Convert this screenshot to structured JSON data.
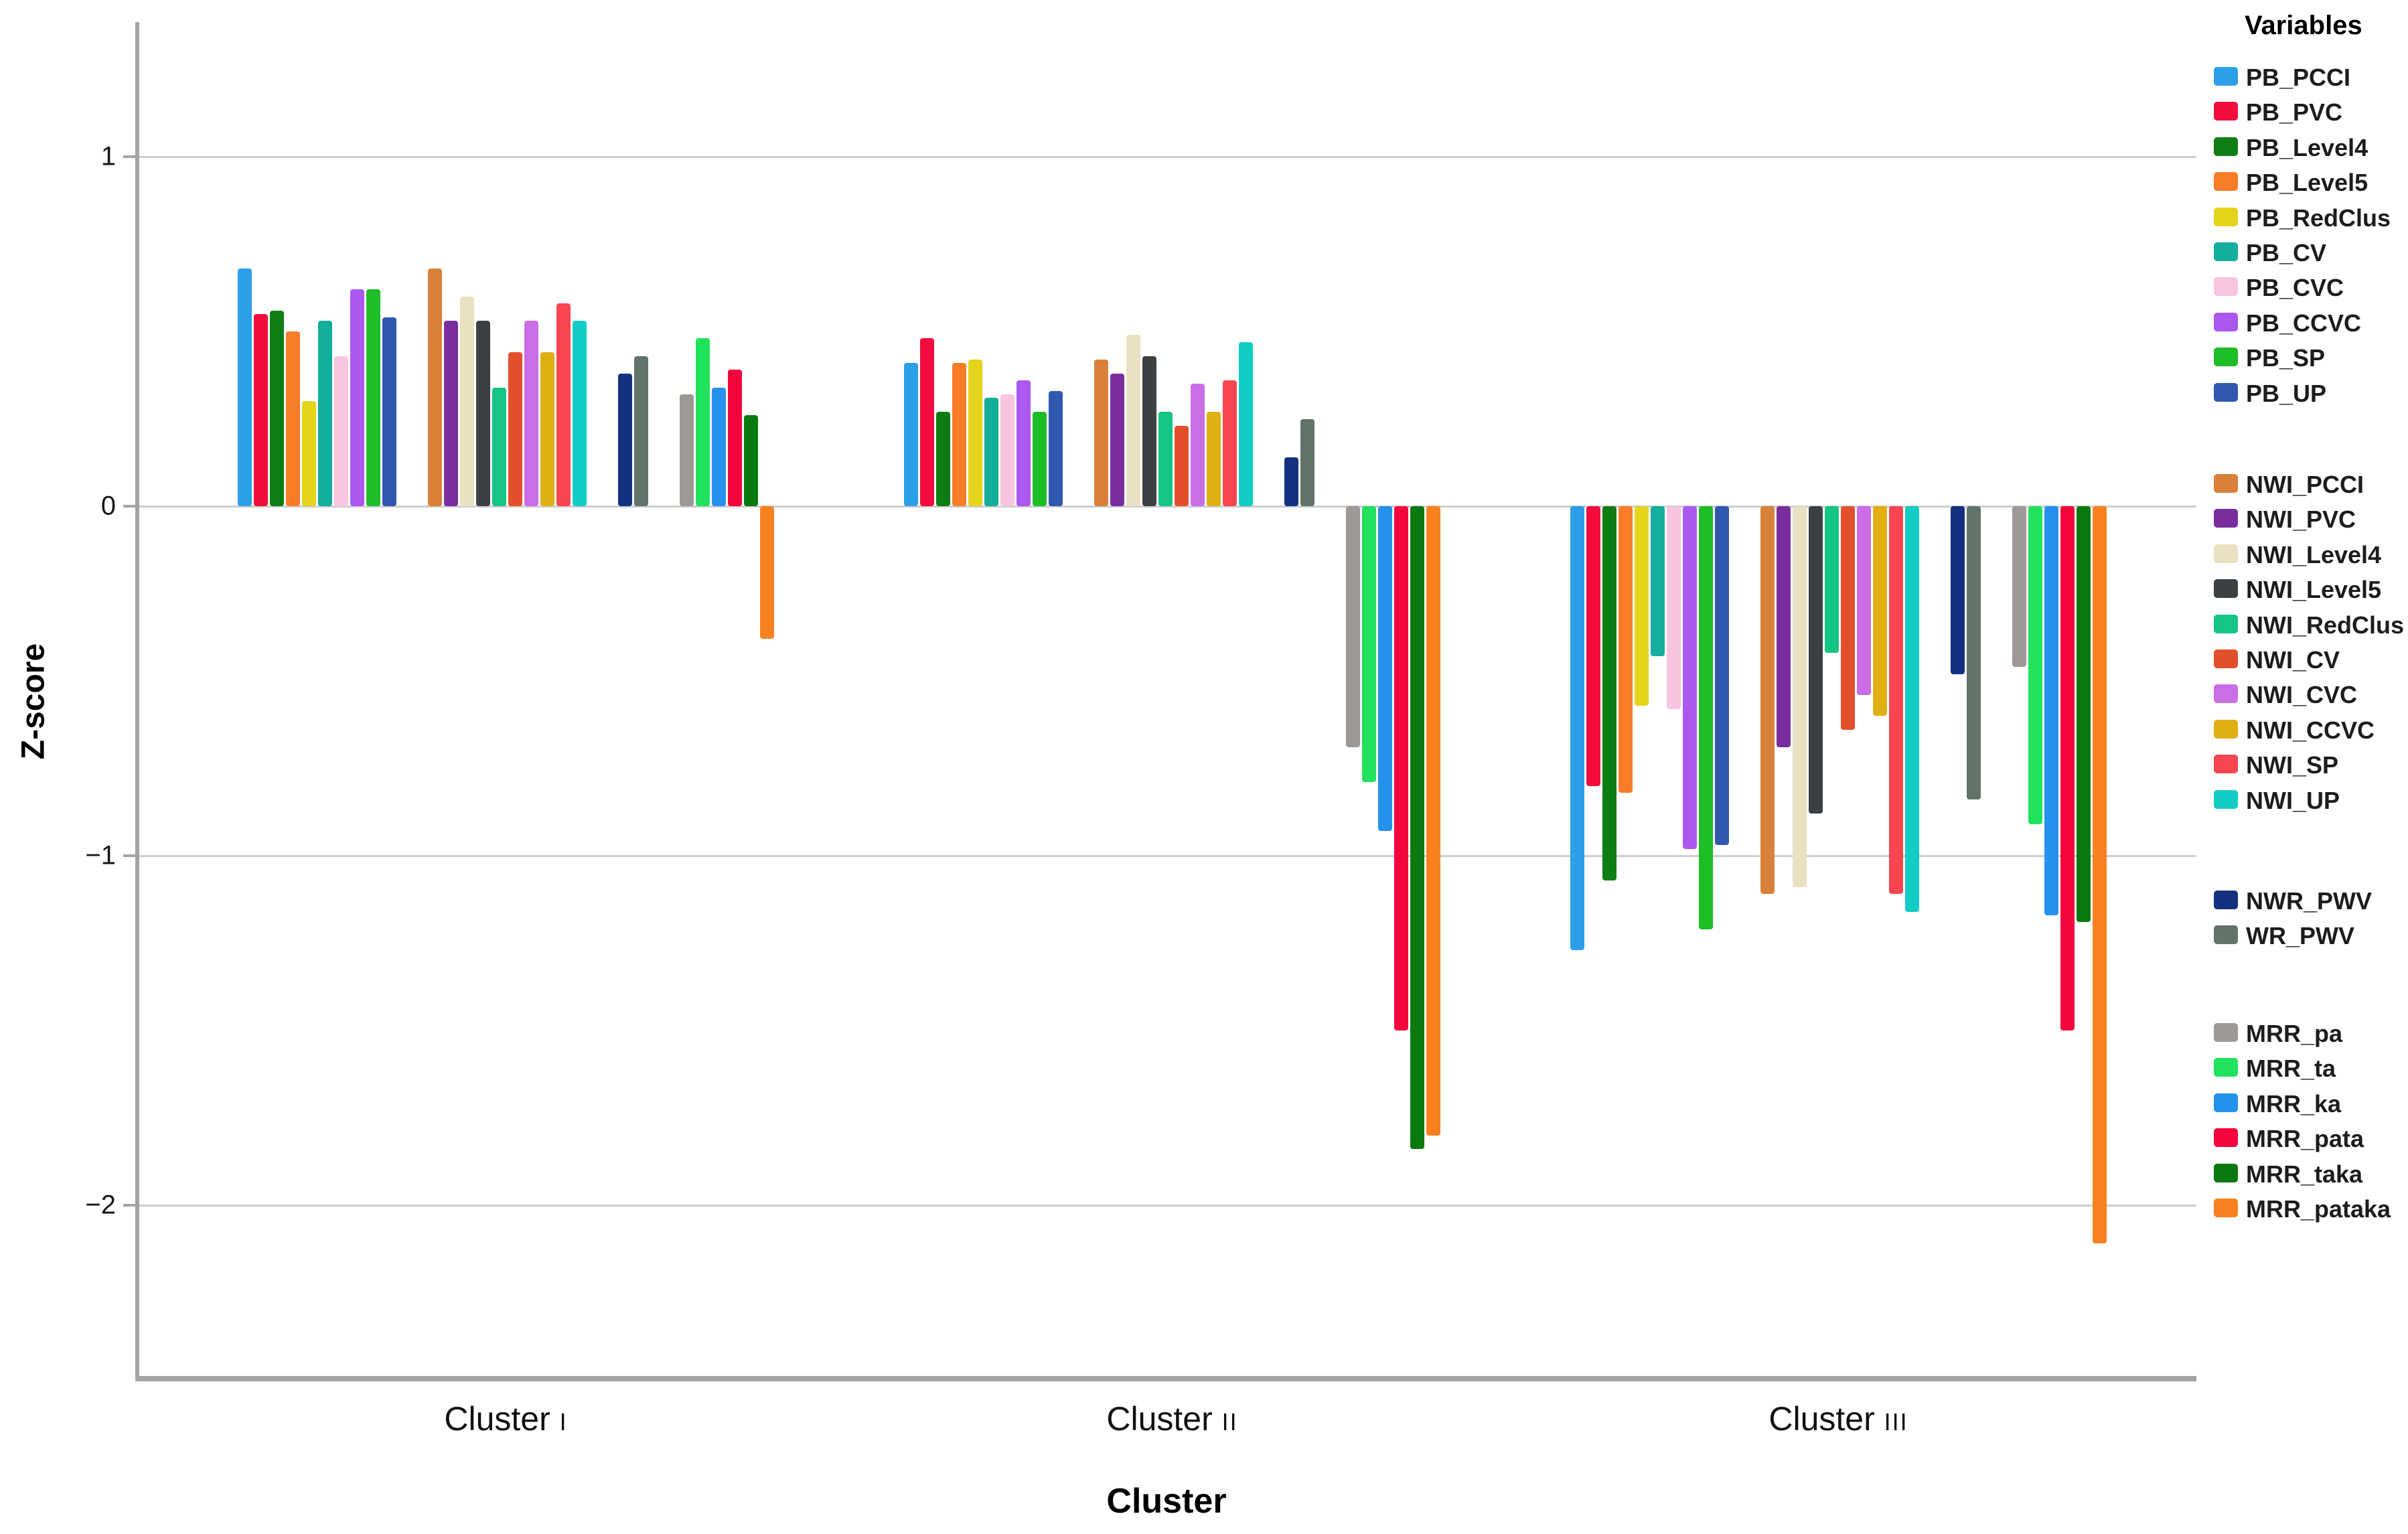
{
  "chart_data": {
    "type": "bar",
    "title": "",
    "xlabel": "Cluster",
    "ylabel": "Z-score",
    "legend_title": "Variables",
    "legend_position": "right",
    "grid": true,
    "ylim": [
      -2.5,
      1.35
    ],
    "ytick_values": [
      1,
      0,
      -1,
      -2
    ],
    "ytick_labels": [
      "1",
      "0",
      "−1",
      "−2"
    ],
    "categories": [
      "Cluster I",
      "Cluster II",
      "Cluster III"
    ],
    "category_labels": [
      {
        "text": "Cluster",
        "numeral": "I"
      },
      {
        "text": "Cluster",
        "numeral": "II"
      },
      {
        "text": "Cluster",
        "numeral": "III"
      }
    ],
    "legend_groups": [
      {
        "series_indices": [
          0,
          1,
          2,
          3,
          4,
          5,
          6,
          7,
          8,
          9
        ]
      },
      {
        "series_indices": [
          10,
          11,
          12,
          13,
          14,
          15,
          16,
          17,
          18,
          19
        ]
      },
      {
        "series_indices": [
          20,
          21
        ]
      },
      {
        "series_indices": [
          22,
          23,
          24,
          25,
          26,
          27
        ]
      }
    ],
    "series": [
      {
        "name": "PB_PCCI",
        "color": "#2D9FE8",
        "values": [
          0.68,
          0.41,
          -1.27
        ]
      },
      {
        "name": "PB_PVC",
        "color": "#F20D3E",
        "values": [
          0.55,
          0.48,
          -0.8
        ]
      },
      {
        "name": "PB_Level4",
        "color": "#0E7E14",
        "values": [
          0.56,
          0.27,
          -1.07
        ]
      },
      {
        "name": "PB_Level5",
        "color": "#F97C28",
        "values": [
          0.5,
          0.41,
          -0.82
        ]
      },
      {
        "name": "PB_RedClus",
        "color": "#E4D41C",
        "values": [
          0.3,
          0.42,
          -0.57
        ]
      },
      {
        "name": "PB_CV",
        "color": "#13AE9C",
        "values": [
          0.53,
          0.31,
          -0.43
        ]
      },
      {
        "name": "PB_CVC",
        "color": "#F7C5E0",
        "values": [
          0.43,
          0.32,
          -0.58
        ]
      },
      {
        "name": "PB_CCVC",
        "color": "#AB57F0",
        "values": [
          0.62,
          0.36,
          -0.98
        ]
      },
      {
        "name": "PB_SP",
        "color": "#1DBE27",
        "values": [
          0.62,
          0.27,
          -1.21
        ]
      },
      {
        "name": "PB_UP",
        "color": "#3058AE",
        "values": [
          0.54,
          0.33,
          -0.97
        ]
      },
      {
        "name": "NWI_PCCI",
        "color": "#D9813A",
        "values": [
          0.68,
          0.42,
          -1.11
        ]
      },
      {
        "name": "NWI_PVC",
        "color": "#7A2E9E",
        "values": [
          0.53,
          0.38,
          -0.69
        ]
      },
      {
        "name": "NWI_Level4",
        "color": "#EAE0C2",
        "values": [
          0.6,
          0.49,
          -1.09
        ]
      },
      {
        "name": "NWI_Level5",
        "color": "#3D4043",
        "values": [
          0.53,
          0.43,
          -0.88
        ]
      },
      {
        "name": "NWI_RedClus",
        "color": "#14C584",
        "values": [
          0.34,
          0.27,
          -0.42
        ]
      },
      {
        "name": "NWI_CV",
        "color": "#E2502B",
        "values": [
          0.44,
          0.23,
          -0.64
        ]
      },
      {
        "name": "NWI_CVC",
        "color": "#CB6DE4",
        "values": [
          0.53,
          0.35,
          -0.54
        ]
      },
      {
        "name": "NWI_CCVC",
        "color": "#E0AF12",
        "values": [
          0.44,
          0.27,
          -0.6
        ]
      },
      {
        "name": "NWI_SP",
        "color": "#F9454F",
        "values": [
          0.58,
          0.36,
          -1.11
        ]
      },
      {
        "name": "NWI_UP",
        "color": "#11CDC5",
        "values": [
          0.53,
          0.47,
          -1.16
        ]
      },
      {
        "name": "NWR_PWV",
        "color": "#14317F",
        "values": [
          0.38,
          0.14,
          -0.48
        ]
      },
      {
        "name": "WR_PWV",
        "color": "#62736A",
        "values": [
          0.43,
          0.25,
          -0.84
        ]
      },
      {
        "name": "MRR_pa",
        "color": "#9E9896",
        "values": [
          0.32,
          -0.69,
          -0.46
        ]
      },
      {
        "name": "MRR_ta",
        "color": "#21E25C",
        "values": [
          0.48,
          -0.79,
          -0.91
        ]
      },
      {
        "name": "MRR_ka",
        "color": "#2492EC",
        "values": [
          0.34,
          -0.93,
          -1.17
        ]
      },
      {
        "name": "MRR_pata",
        "color": "#F5053D",
        "values": [
          0.39,
          -1.5,
          -1.5
        ]
      },
      {
        "name": "MRR_taka",
        "color": "#0A7A10",
        "values": [
          0.26,
          -1.84,
          -1.19
        ]
      },
      {
        "name": "MRR_pataka",
        "color": "#F8811F",
        "values": [
          -0.38,
          -1.8,
          -2.11
        ]
      }
    ]
  },
  "style_colors": {
    "axis": "#a3a3a3",
    "grid": "#cdcdcd",
    "text": "#111111"
  }
}
